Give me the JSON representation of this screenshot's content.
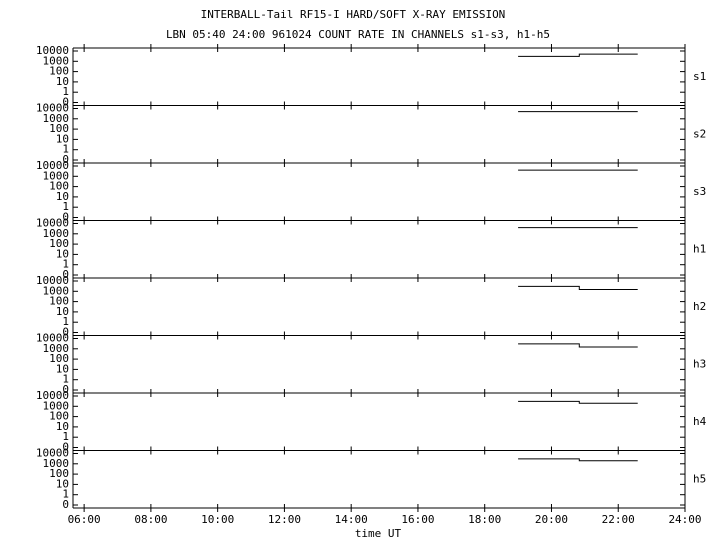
{
  "chart_data": {
    "type": "line",
    "title": "INTERBALL-Tail RF15-I HARD/SOFT X-RAY EMISSION",
    "subtitle": "LBN 05:40 24:00 961024  COUNT RATE IN CHANNELS s1-s3, h1-h5",
    "x_label": "time UT",
    "xlim": [
      "05:40",
      "24:00"
    ],
    "xticks": [
      "06:00",
      "08:00",
      "10:00",
      "12:00",
      "14:00",
      "16:00",
      "18:00",
      "20:00",
      "22:00",
      "24:00"
    ],
    "ylim": [
      0.1,
      10000
    ],
    "yticks": [
      10000,
      1000,
      100,
      10,
      1,
      {
        "value": 0.1,
        "label": "0"
      }
    ],
    "log_y": true,
    "color": "#000000",
    "panels": [
      {
        "name": "s1",
        "x": [
          "19:00",
          "20:50",
          "20:50",
          "22:35"
        ],
        "values": [
          3000,
          3000,
          5000,
          5000
        ]
      },
      {
        "name": "s2",
        "x": [
          "19:00",
          "20:50",
          "20:50",
          "22:35"
        ],
        "values": [
          5000,
          5000,
          5000,
          5000
        ]
      },
      {
        "name": "s3",
        "x": [
          "19:00",
          "20:50",
          "20:50",
          "22:35"
        ],
        "values": [
          4000,
          4000,
          4000,
          4000
        ]
      },
      {
        "name": "h1",
        "x": [
          "19:00",
          "20:50",
          "20:50",
          "22:35"
        ],
        "values": [
          4000,
          4000,
          4000,
          4000
        ]
      },
      {
        "name": "h2",
        "x": [
          "19:00",
          "20:50",
          "20:50",
          "22:35"
        ],
        "values": [
          3000,
          3000,
          1500,
          1500
        ]
      },
      {
        "name": "h3",
        "x": [
          "19:00",
          "20:50",
          "20:50",
          "22:35"
        ],
        "values": [
          3000,
          3000,
          1500,
          1500
        ]
      },
      {
        "name": "h4",
        "x": [
          "19:00",
          "20:50",
          "20:50",
          "22:35"
        ],
        "values": [
          3000,
          3000,
          2000,
          2000
        ]
      },
      {
        "name": "h5",
        "x": [
          "19:00",
          "20:50",
          "20:50",
          "22:35"
        ],
        "values": [
          3000,
          3000,
          2000,
          2000
        ]
      }
    ]
  }
}
